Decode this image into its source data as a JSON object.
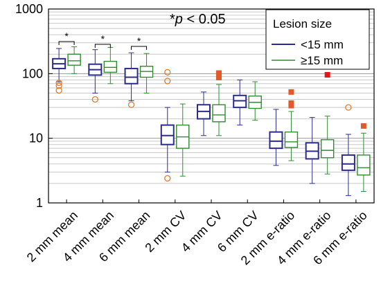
{
  "chart_data": {
    "type": "boxplot",
    "y_scale": "log",
    "ylim": [
      1,
      1000
    ],
    "y_ticks": [
      1,
      10,
      100,
      1000
    ],
    "y_tick_labels": [
      "1",
      "10",
      "100",
      "1000"
    ],
    "grid": "horizontal minor",
    "legend_position": "top-right",
    "annotation": {
      "prefix": "*",
      "italic": "p",
      "suffix": " < 0.05"
    },
    "legend": {
      "title": "Lesion size",
      "entries": [
        "<15 mm",
        "≥15 mm"
      ]
    },
    "colors": {
      "small": "#2b2b8c",
      "large": "#2e8b2e",
      "outlier_circle": "#e07b2a",
      "outlier_square": "#e05a2a",
      "outlier_red": "#e01818"
    },
    "categories": [
      "2 mm mean",
      "4 mm mean",
      "6 mm mean",
      "2 mm CV",
      "4 mm CV",
      "6 mm CV",
      "2 mm e-ratio",
      "4 mm e-ratio",
      "6 mm e-ratio"
    ],
    "series": [
      {
        "name": "<15 mm",
        "boxes": [
          {
            "low": 75,
            "q1": 120,
            "median": 142,
            "q3": 170,
            "high": 245,
            "outliers": [
              {
                "v": 55,
                "shape": "circle"
              },
              {
                "v": 65,
                "shape": "circle"
              },
              {
                "v": 72,
                "shape": "circle"
              }
            ]
          },
          {
            "low": 50,
            "q1": 95,
            "median": 115,
            "q3": 140,
            "high": 235,
            "outliers": [
              {
                "v": 40,
                "shape": "circle"
              }
            ]
          },
          {
            "low": 38,
            "q1": 70,
            "median": 88,
            "q3": 120,
            "high": 210,
            "outliers": [
              {
                "v": 33,
                "shape": "circle"
              }
            ]
          },
          {
            "low": 3,
            "q1": 8,
            "median": 11,
            "q3": 16,
            "high": 30,
            "outliers": [
              {
                "v": 2.4,
                "shape": "circle"
              },
              {
                "v": 77,
                "shape": "circle"
              },
              {
                "v": 105,
                "shape": "circle"
              }
            ]
          },
          {
            "low": 11,
            "q1": 20,
            "median": 26,
            "q3": 33,
            "high": 52,
            "outliers": []
          },
          {
            "low": 16,
            "q1": 30,
            "median": 38,
            "q3": 46,
            "high": 80,
            "outliers": []
          },
          {
            "low": 3.8,
            "q1": 7,
            "median": 9,
            "q3": 12.5,
            "high": 28,
            "outliers": []
          },
          {
            "low": 2,
            "q1": 4.8,
            "median": 6.3,
            "q3": 8.5,
            "high": 21,
            "outliers": []
          },
          {
            "low": 1.3,
            "q1": 3.2,
            "median": 4,
            "q3": 5.5,
            "high": 11.5,
            "outliers": [
              {
                "v": 30,
                "shape": "circle"
              }
            ]
          }
        ]
      },
      {
        "name": "≥15 mm",
        "boxes": [
          {
            "low": 100,
            "q1": 135,
            "median": 158,
            "q3": 200,
            "high": 260,
            "outliers": []
          },
          {
            "low": 70,
            "q1": 105,
            "median": 125,
            "q3": 155,
            "high": 255,
            "outliers": []
          },
          {
            "low": 50,
            "q1": 88,
            "median": 108,
            "q3": 130,
            "high": 205,
            "outliers": []
          },
          {
            "low": 2.6,
            "q1": 7,
            "median": 10.5,
            "q3": 16,
            "high": 34,
            "outliers": []
          },
          {
            "low": 11,
            "q1": 18,
            "median": 23,
            "q3": 33,
            "high": 68,
            "outliers": [
              {
                "v": 87,
                "shape": "square"
              },
              {
                "v": 95,
                "shape": "square"
              },
              {
                "v": 102,
                "shape": "square"
              }
            ]
          },
          {
            "low": 19,
            "q1": 29,
            "median": 36,
            "q3": 45,
            "high": 75,
            "outliers": []
          },
          {
            "low": 4.5,
            "q1": 7.2,
            "median": 8.8,
            "q3": 12.5,
            "high": 26,
            "outliers": [
              {
                "v": 32,
                "shape": "square"
              },
              {
                "v": 35,
                "shape": "square"
              },
              {
                "v": 52,
                "shape": "square"
              }
            ]
          },
          {
            "low": 2.8,
            "q1": 5,
            "median": 6.5,
            "q3": 9.5,
            "high": 22,
            "outliers": [
              {
                "v": 96,
                "shape": "red-square"
              }
            ]
          },
          {
            "low": 1.5,
            "q1": 2.7,
            "median": 3.5,
            "q3": 5.5,
            "high": 12,
            "outliers": [
              {
                "v": 15.5,
                "shape": "square"
              }
            ]
          }
        ]
      }
    ],
    "significance": [
      {
        "category_index": 0,
        "label": "*"
      },
      {
        "category_index": 1,
        "label": "*"
      },
      {
        "category_index": 2,
        "label": "*"
      }
    ]
  }
}
